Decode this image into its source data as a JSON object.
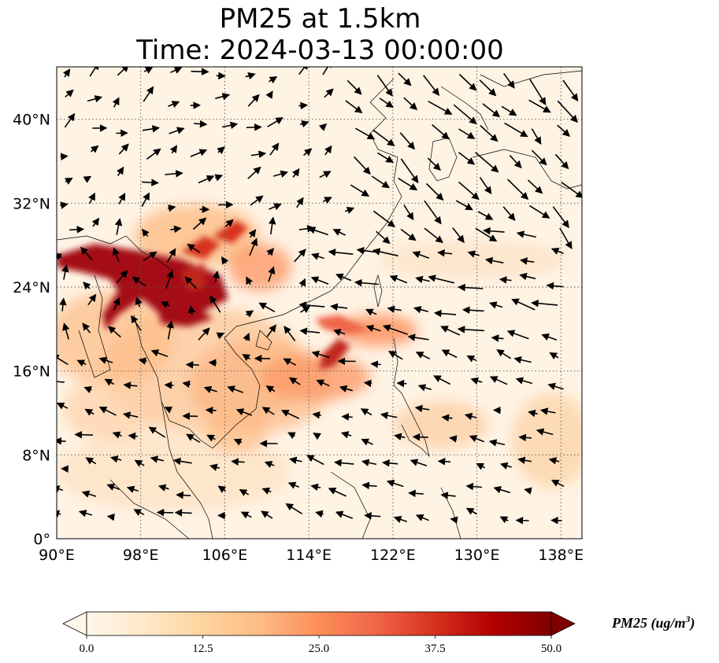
{
  "title": {
    "line1": "PM25 at 1.5km",
    "line2": "Time: 2024-03-13 00:00:00"
  },
  "map": {
    "projection": "PlateCarree",
    "lon_range": [
      90,
      140
    ],
    "lat_range": [
      0,
      45
    ],
    "gridlines": "dotted",
    "field": "PM25 concentration",
    "overlay": "wind vectors (quiver arrows)",
    "lon_ticks": [
      {
        "value": 90,
        "label": "90°E"
      },
      {
        "value": 98,
        "label": "98°E"
      },
      {
        "value": 106,
        "label": "106°E"
      },
      {
        "value": 114,
        "label": "114°E"
      },
      {
        "value": 122,
        "label": "122°E"
      },
      {
        "value": 130,
        "label": "130°E"
      },
      {
        "value": 138,
        "label": "138°E"
      }
    ],
    "lat_ticks": [
      {
        "value": 0,
        "label": "0°"
      },
      {
        "value": 8,
        "label": "8°N"
      },
      {
        "value": 16,
        "label": "16°N"
      },
      {
        "value": 24,
        "label": "24°N"
      },
      {
        "value": 32,
        "label": "32°N"
      },
      {
        "value": 40,
        "label": "40°N"
      }
    ]
  },
  "colorbar": {
    "label": "PM25 (ug/m3)",
    "label_main": "PM25 (ug/m",
    "label_sup": "3",
    "label_end": ")",
    "colormap": "OrRd",
    "range": [
      0,
      50
    ],
    "extend": "both",
    "ticks": [
      "0.0",
      "12.5",
      "25.0",
      "37.5",
      "50.0"
    ],
    "colors": [
      "#fff7ec",
      "#fee8c8",
      "#fdd49e",
      "#fdbb84",
      "#fc8d59",
      "#ef6548",
      "#d7301f",
      "#b30000",
      "#7f0000"
    ]
  }
}
